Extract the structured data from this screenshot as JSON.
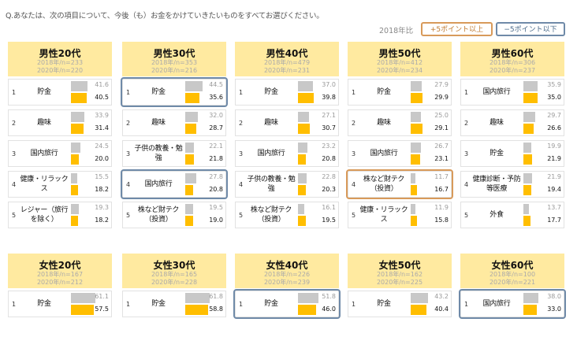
{
  "question": "Q.あなたは、次の項目について、今後（も）お金をかけていきたいものをすべてお選びください。",
  "legend": {
    "compare_label": "2018年比",
    "plus": "+5ポイント以上",
    "minus": "−5ポイント以下"
  },
  "colors": {
    "header_bg": "#ffeaa0",
    "bar_2018": "#c8c8c8",
    "bar_2020": "#ffbe00",
    "plus_border": "#d89a5a",
    "minus_border": "#6f8aa8"
  },
  "chart_data": {
    "type": "bar",
    "series": [
      {
        "name": "2018年",
        "color": "#c8c8c8"
      },
      {
        "name": "2020年",
        "color": "#ffbe00"
      }
    ],
    "xlim": [
      0,
      100
    ],
    "panels": [
      {
        "title": "男性20代",
        "n2018": "2018年/n=233",
        "n2020": "2020年/n=220",
        "rows": [
          {
            "rank": "1",
            "label": "貯金",
            "v2018": 41.6,
            "v2020": 40.5,
            "highlight": ""
          },
          {
            "rank": "2",
            "label": "趣味",
            "v2018": 33.9,
            "v2020": 31.4,
            "highlight": ""
          },
          {
            "rank": "3",
            "label": "国内旅行",
            "v2018": 24.5,
            "v2020": 20.0,
            "highlight": ""
          },
          {
            "rank": "4",
            "label": "健康・リラックス",
            "v2018": 15.5,
            "v2020": 18.2,
            "highlight": ""
          },
          {
            "rank": "5",
            "label": "レジャー（旅行を除く）",
            "v2018": 19.3,
            "v2020": 18.2,
            "highlight": ""
          }
        ]
      },
      {
        "title": "男性30代",
        "n2018": "2018年/n=353",
        "n2020": "2020年/n=216",
        "rows": [
          {
            "rank": "1",
            "label": "貯金",
            "v2018": 44.5,
            "v2020": 35.6,
            "highlight": "minus"
          },
          {
            "rank": "2",
            "label": "趣味",
            "v2018": 32.0,
            "v2020": 28.7,
            "highlight": ""
          },
          {
            "rank": "3",
            "label": "子供の教養・勉強",
            "v2018": 22.1,
            "v2020": 21.8,
            "highlight": ""
          },
          {
            "rank": "4",
            "label": "国内旅行",
            "v2018": 27.8,
            "v2020": 20.8,
            "highlight": "minus"
          },
          {
            "rank": "5",
            "label": "株など財テク（投資）",
            "v2018": 19.5,
            "v2020": 19.0,
            "highlight": ""
          }
        ]
      },
      {
        "title": "男性40代",
        "n2018": "2018年/n=479",
        "n2020": "2020年/n=231",
        "rows": [
          {
            "rank": "1",
            "label": "貯金",
            "v2018": 37.0,
            "v2020": 39.8,
            "highlight": ""
          },
          {
            "rank": "2",
            "label": "趣味",
            "v2018": 27.1,
            "v2020": 30.7,
            "highlight": ""
          },
          {
            "rank": "3",
            "label": "国内旅行",
            "v2018": 23.2,
            "v2020": 20.8,
            "highlight": ""
          },
          {
            "rank": "4",
            "label": "子供の教養・勉強",
            "v2018": 22.8,
            "v2020": 20.3,
            "highlight": ""
          },
          {
            "rank": "5",
            "label": "株など財テク（投資）",
            "v2018": 16.1,
            "v2020": 19.5,
            "highlight": ""
          }
        ]
      },
      {
        "title": "男性50代",
        "n2018": "2018年/n=412",
        "n2020": "2020年/n=234",
        "rows": [
          {
            "rank": "1",
            "label": "貯金",
            "v2018": 27.9,
            "v2020": 29.9,
            "highlight": ""
          },
          {
            "rank": "2",
            "label": "趣味",
            "v2018": 25.0,
            "v2020": 29.1,
            "highlight": ""
          },
          {
            "rank": "3",
            "label": "国内旅行",
            "v2018": 26.7,
            "v2020": 23.1,
            "highlight": ""
          },
          {
            "rank": "4",
            "label": "株など財テク（投資）",
            "v2018": 11.7,
            "v2020": 16.7,
            "highlight": "plus"
          },
          {
            "rank": "5",
            "label": "健康・リラックス",
            "v2018": 11.9,
            "v2020": 15.8,
            "highlight": ""
          }
        ]
      },
      {
        "title": "男性60代",
        "n2018": "2018年/n=306",
        "n2020": "2020年/n=237",
        "rows": [
          {
            "rank": "1",
            "label": "国内旅行",
            "v2018": 35.9,
            "v2020": 35.0,
            "highlight": ""
          },
          {
            "rank": "2",
            "label": "趣味",
            "v2018": 29.7,
            "v2020": 26.6,
            "highlight": ""
          },
          {
            "rank": "3",
            "label": "貯金",
            "v2018": 19.9,
            "v2020": 21.9,
            "highlight": ""
          },
          {
            "rank": "4",
            "label": "健康診断・予防等医療",
            "v2018": 21.9,
            "v2020": 19.4,
            "highlight": ""
          },
          {
            "rank": "5",
            "label": "外食",
            "v2018": 13.7,
            "v2020": 17.7,
            "highlight": ""
          }
        ]
      },
      {
        "title": "女性20代",
        "n2018": "2018年/n=167",
        "n2020": "2020年/n=212",
        "rows": [
          {
            "rank": "1",
            "label": "貯金",
            "v2018": 61.1,
            "v2020": 57.5,
            "highlight": ""
          }
        ]
      },
      {
        "title": "女性30代",
        "n2018": "2018年/n=165",
        "n2020": "2020年/n=228",
        "rows": [
          {
            "rank": "1",
            "label": "貯金",
            "v2018": 61.8,
            "v2020": 58.8,
            "highlight": ""
          }
        ]
      },
      {
        "title": "女性40代",
        "n2018": "2018年/n=226",
        "n2020": "2020年/n=239",
        "rows": [
          {
            "rank": "1",
            "label": "貯金",
            "v2018": 51.8,
            "v2020": 46.0,
            "highlight": "minus"
          }
        ]
      },
      {
        "title": "女性50代",
        "n2018": "2018年/n=162",
        "n2020": "2020年/n=225",
        "rows": [
          {
            "rank": "1",
            "label": "貯金",
            "v2018": 43.2,
            "v2020": 40.4,
            "highlight": ""
          }
        ]
      },
      {
        "title": "女性60代",
        "n2018": "2018年/n=100",
        "n2020": "2020年/n=221",
        "rows": [
          {
            "rank": "1",
            "label": "国内旅行",
            "v2018": 38.0,
            "v2020": 33.0,
            "highlight": "minus"
          }
        ]
      }
    ]
  }
}
